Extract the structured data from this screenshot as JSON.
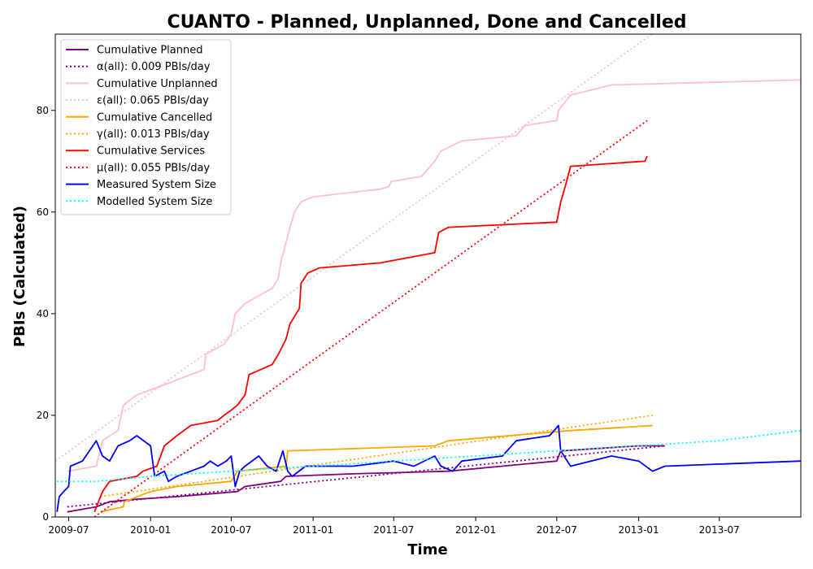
{
  "chart_data": {
    "type": "line",
    "title": "CUANTO - Planned, Unplanned, Done  and Cancelled",
    "xlabel": "Time",
    "ylabel": "PBIs (Calculated)",
    "x_ticks": [
      "2009-07",
      "2010-01",
      "2010-07",
      "2011-01",
      "2011-07",
      "2012-01",
      "2012-07",
      "2013-01",
      "2013-07"
    ],
    "y_ticks": [
      0,
      20,
      40,
      60,
      80
    ],
    "xlim": [
      "2009-06-01",
      "2013-12-31"
    ],
    "ylim": [
      0,
      95
    ],
    "grid": false,
    "legend_position": "top-left",
    "series": [
      {
        "name": "Cumulative Planned",
        "color": "#800080",
        "style": "solid",
        "points": [
          [
            "2009-06-28",
            1
          ],
          [
            "2009-09-01",
            2
          ],
          [
            "2009-10-01",
            3
          ],
          [
            "2009-12-01",
            3.5
          ],
          [
            "2010-03-01",
            4
          ],
          [
            "2010-07-15",
            5
          ],
          [
            "2010-08-01",
            6
          ],
          [
            "2010-10-20",
            7
          ],
          [
            "2010-11-01",
            8
          ],
          [
            "2011-04-01",
            8.5
          ],
          [
            "2011-11-01",
            9
          ],
          [
            "2012-07-01",
            11
          ],
          [
            "2012-07-10",
            13
          ],
          [
            "2013-01-01",
            14
          ],
          [
            "2013-03-01",
            14
          ]
        ]
      },
      {
        "name": "α(all): 0.009 PBIs/day",
        "color": "#800080",
        "style": "dotted",
        "points": [
          [
            "2009-06-28",
            2
          ],
          [
            "2013-03-01",
            14
          ]
        ]
      },
      {
        "name": "Cumulative Unplanned",
        "color": "#ffc0cb",
        "style": "solid",
        "points": [
          [
            "2009-06-28",
            9
          ],
          [
            "2009-09-01",
            10
          ],
          [
            "2009-09-15",
            15
          ],
          [
            "2009-10-20",
            17
          ],
          [
            "2009-11-01",
            22
          ],
          [
            "2009-12-01",
            24
          ],
          [
            "2010-02-01",
            26
          ],
          [
            "2010-04-01",
            28
          ],
          [
            "2010-05-01",
            29
          ],
          [
            "2010-05-05",
            32
          ],
          [
            "2010-06-15",
            34
          ],
          [
            "2010-07-01",
            36
          ],
          [
            "2010-07-10",
            40
          ],
          [
            "2010-08-01",
            42
          ],
          [
            "2010-10-01",
            45
          ],
          [
            "2010-10-15",
            47
          ],
          [
            "2010-10-20",
            50
          ],
          [
            "2010-11-01",
            54
          ],
          [
            "2010-11-10",
            57
          ],
          [
            "2010-11-20",
            60
          ],
          [
            "2010-12-05",
            62
          ],
          [
            "2011-01-01",
            63
          ],
          [
            "2011-06-01",
            64.5
          ],
          [
            "2011-06-20",
            65
          ],
          [
            "2011-06-25",
            66
          ],
          [
            "2011-09-01",
            67
          ],
          [
            "2011-10-01",
            70
          ],
          [
            "2011-10-15",
            72
          ],
          [
            "2011-12-01",
            74
          ],
          [
            "2012-04-01",
            75
          ],
          [
            "2012-04-20",
            77
          ],
          [
            "2012-07-01",
            78
          ],
          [
            "2012-07-05",
            80
          ],
          [
            "2012-08-01",
            83
          ],
          [
            "2012-11-01",
            85
          ],
          [
            "2013-12-31",
            86
          ]
        ]
      },
      {
        "name": "ε(all): 0.065 PBIs/day",
        "color": "#ffc0cb",
        "style": "dotted",
        "points": [
          [
            "2009-06-01",
            11
          ],
          [
            "2013-01-31",
            95
          ]
        ]
      },
      {
        "name": "Cumulative Cancelled",
        "color": "#ffa500",
        "style": "solid",
        "points": [
          [
            "2009-09-10",
            1
          ],
          [
            "2009-11-01",
            2
          ],
          [
            "2009-11-03",
            3
          ],
          [
            "2010-01-01",
            5
          ],
          [
            "2010-03-01",
            6
          ],
          [
            "2010-07-01",
            7
          ],
          [
            "2010-07-15",
            9
          ],
          [
            "2010-11-01",
            10
          ],
          [
            "2010-11-05",
            13
          ],
          [
            "2011-10-01",
            14
          ],
          [
            "2011-11-01",
            15
          ],
          [
            "2012-08-01",
            17
          ],
          [
            "2013-02-01",
            18
          ]
        ]
      },
      {
        "name": "γ(all): 0.013 PBIs/day",
        "color": "#ffa500",
        "style": "dotted",
        "points": [
          [
            "2009-09-10",
            4
          ],
          [
            "2013-02-01",
            20
          ]
        ]
      },
      {
        "name": "Cumulative Services",
        "color": "#ff0000",
        "style": "solid",
        "points": [
          [
            "2009-08-28",
            1
          ],
          [
            "2009-09-15",
            5
          ],
          [
            "2009-10-01",
            7
          ],
          [
            "2009-12-01",
            8
          ],
          [
            "2009-12-15",
            9
          ],
          [
            "2010-01-15",
            10
          ],
          [
            "2010-02-01",
            14
          ],
          [
            "2010-03-01",
            16
          ],
          [
            "2010-04-01",
            18
          ],
          [
            "2010-06-01",
            19
          ],
          [
            "2010-06-15",
            20
          ],
          [
            "2010-07-01",
            21
          ],
          [
            "2010-07-15",
            22
          ],
          [
            "2010-08-01",
            24
          ],
          [
            "2010-08-10",
            28
          ],
          [
            "2010-10-01",
            30
          ],
          [
            "2010-10-15",
            32
          ],
          [
            "2010-11-01",
            35
          ],
          [
            "2010-11-10",
            38
          ],
          [
            "2010-12-01",
            41
          ],
          [
            "2010-12-05",
            46
          ],
          [
            "2010-12-20",
            48
          ],
          [
            "2011-01-15",
            49
          ],
          [
            "2011-06-01",
            50
          ],
          [
            "2011-10-01",
            52
          ],
          [
            "2011-10-10",
            56
          ],
          [
            "2011-11-01",
            57
          ],
          [
            "2012-07-01",
            58
          ],
          [
            "2012-07-10",
            62
          ],
          [
            "2012-07-20",
            65
          ],
          [
            "2012-08-01",
            69
          ],
          [
            "2013-01-15",
            70
          ],
          [
            "2013-01-20",
            71
          ]
        ]
      },
      {
        "name": "μ(all): 0.055 PBIs/day",
        "color": "#ff0000",
        "style": "dotted",
        "points": [
          [
            "2009-08-28",
            0
          ],
          [
            "2013-01-20",
            78
          ]
        ]
      },
      {
        "name": "Measured System Size",
        "color": "#0000ff",
        "style": "solid",
        "points": [
          [
            "2009-06-05",
            1
          ],
          [
            "2009-06-10",
            4
          ],
          [
            "2009-06-20",
            5
          ],
          [
            "2009-07-01",
            6
          ],
          [
            "2009-07-05",
            10
          ],
          [
            "2009-08-01",
            11
          ],
          [
            "2009-09-01",
            15
          ],
          [
            "2009-09-15",
            12
          ],
          [
            "2009-10-01",
            11
          ],
          [
            "2009-10-20",
            14
          ],
          [
            "2009-11-15",
            15
          ],
          [
            "2009-12-01",
            16
          ],
          [
            "2010-01-01",
            14
          ],
          [
            "2010-01-10",
            8
          ],
          [
            "2010-02-01",
            9
          ],
          [
            "2010-02-10",
            7
          ],
          [
            "2010-03-01",
            8
          ],
          [
            "2010-04-01",
            9
          ],
          [
            "2010-05-01",
            10
          ],
          [
            "2010-05-15",
            11
          ],
          [
            "2010-06-01",
            10
          ],
          [
            "2010-06-20",
            11
          ],
          [
            "2010-07-01",
            12
          ],
          [
            "2010-07-10",
            6
          ],
          [
            "2010-07-20",
            9
          ],
          [
            "2010-08-01",
            10
          ],
          [
            "2010-09-01",
            12
          ],
          [
            "2010-09-20",
            10
          ],
          [
            "2010-10-10",
            9
          ],
          [
            "2010-10-25",
            13
          ],
          [
            "2010-11-05",
            9
          ],
          [
            "2010-11-15",
            8
          ],
          [
            "2010-12-15",
            10
          ],
          [
            "2011-04-01",
            10
          ],
          [
            "2011-07-01",
            11
          ],
          [
            "2011-08-15",
            10
          ],
          [
            "2011-10-01",
            12
          ],
          [
            "2011-10-15",
            10
          ],
          [
            "2011-11-10",
            9
          ],
          [
            "2011-12-01",
            11
          ],
          [
            "2012-03-01",
            12
          ],
          [
            "2012-04-01",
            15
          ],
          [
            "2012-06-15",
            16
          ],
          [
            "2012-07-05",
            18
          ],
          [
            "2012-07-10",
            13
          ],
          [
            "2012-08-01",
            10
          ],
          [
            "2012-11-01",
            12
          ],
          [
            "2013-01-01",
            11
          ],
          [
            "2013-02-01",
            9
          ],
          [
            "2013-03-01",
            10
          ],
          [
            "2013-12-31",
            11
          ]
        ]
      },
      {
        "name": "Modelled System Size",
        "color": "#00ffff",
        "style": "dotted",
        "points": [
          [
            "2009-06-05",
            7
          ],
          [
            "2009-09-01",
            7
          ],
          [
            "2010-01-01",
            8
          ],
          [
            "2010-07-01",
            9
          ],
          [
            "2011-01-01",
            10
          ],
          [
            "2011-07-01",
            11
          ],
          [
            "2012-01-01",
            12
          ],
          [
            "2012-07-01",
            13
          ],
          [
            "2013-01-01",
            14
          ],
          [
            "2013-07-01",
            15
          ],
          [
            "2013-12-31",
            17
          ]
        ]
      }
    ]
  }
}
